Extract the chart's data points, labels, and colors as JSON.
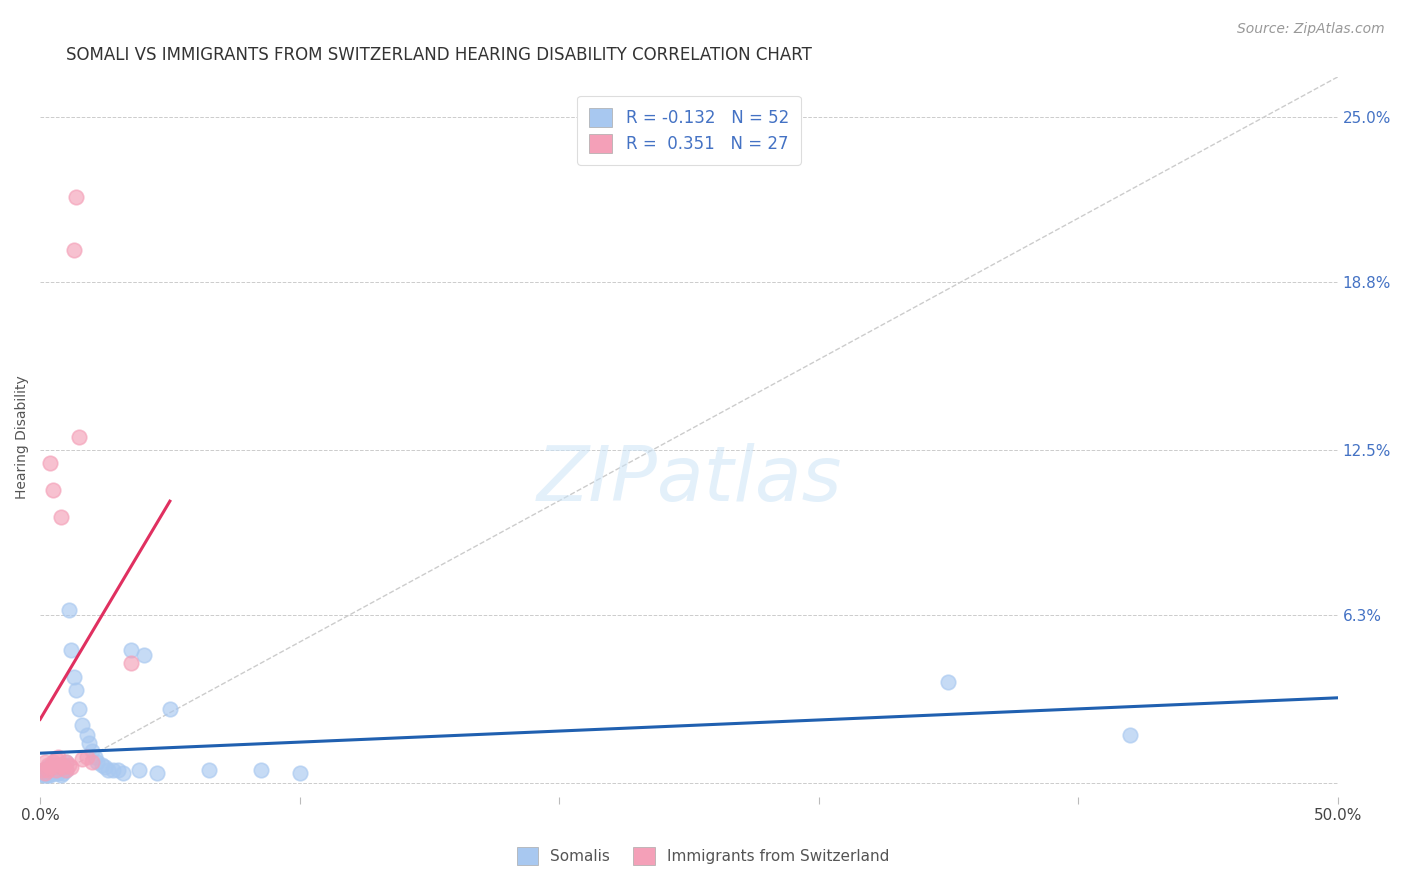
{
  "title": "SOMALI VS IMMIGRANTS FROM SWITZERLAND HEARING DISABILITY CORRELATION CHART",
  "source": "Source: ZipAtlas.com",
  "ylabel": "Hearing Disability",
  "xlim": [
    0.0,
    0.5
  ],
  "ylim": [
    -0.005,
    0.265
  ],
  "xticks": [
    0.0,
    0.1,
    0.2,
    0.3,
    0.4,
    0.5
  ],
  "xticklabels": [
    "0.0%",
    "",
    "",
    "",
    "",
    "50.0%"
  ],
  "ytick_vals": [
    0.0,
    0.063,
    0.125,
    0.188,
    0.25
  ],
  "ytick_labels": [
    "",
    "6.3%",
    "12.5%",
    "18.8%",
    "25.0%"
  ],
  "legend_labels": [
    "Somalis",
    "Immigrants from Switzerland"
  ],
  "somali_color": "#a8c8f0",
  "swiss_color": "#f4a0b8",
  "somali_line_color": "#2060b0",
  "swiss_line_color": "#e03060",
  "diagonal_color": "#cccccc",
  "R_somali": -0.132,
  "N_somali": 52,
  "R_swiss": 0.351,
  "N_swiss": 27,
  "somali_x": [
    0.001,
    0.001,
    0.002,
    0.002,
    0.002,
    0.003,
    0.003,
    0.003,
    0.004,
    0.004,
    0.004,
    0.005,
    0.005,
    0.005,
    0.006,
    0.006,
    0.006,
    0.007,
    0.007,
    0.008,
    0.008,
    0.009,
    0.009,
    0.01,
    0.01,
    0.011,
    0.012,
    0.013,
    0.014,
    0.015,
    0.016,
    0.018,
    0.019,
    0.02,
    0.021,
    0.022,
    0.024,
    0.025,
    0.026,
    0.028,
    0.03,
    0.032,
    0.035,
    0.038,
    0.04,
    0.045,
    0.05,
    0.065,
    0.085,
    0.1,
    0.35,
    0.42
  ],
  "somali_y": [
    0.005,
    0.003,
    0.005,
    0.004,
    0.003,
    0.006,
    0.004,
    0.003,
    0.005,
    0.004,
    0.003,
    0.007,
    0.005,
    0.004,
    0.007,
    0.005,
    0.004,
    0.006,
    0.004,
    0.005,
    0.003,
    0.007,
    0.004,
    0.008,
    0.005,
    0.065,
    0.05,
    0.04,
    0.035,
    0.028,
    0.022,
    0.018,
    0.015,
    0.012,
    0.01,
    0.008,
    0.007,
    0.006,
    0.005,
    0.005,
    0.005,
    0.004,
    0.05,
    0.005,
    0.048,
    0.004,
    0.028,
    0.005,
    0.005,
    0.004,
    0.038,
    0.018
  ],
  "swiss_x": [
    0.001,
    0.002,
    0.002,
    0.003,
    0.003,
    0.004,
    0.004,
    0.005,
    0.005,
    0.006,
    0.006,
    0.007,
    0.007,
    0.008,
    0.008,
    0.009,
    0.01,
    0.01,
    0.011,
    0.012,
    0.013,
    0.014,
    0.015,
    0.016,
    0.018,
    0.02,
    0.035
  ],
  "swiss_y": [
    0.005,
    0.008,
    0.004,
    0.007,
    0.005,
    0.12,
    0.006,
    0.11,
    0.008,
    0.009,
    0.005,
    0.01,
    0.006,
    0.1,
    0.007,
    0.006,
    0.008,
    0.005,
    0.007,
    0.006,
    0.2,
    0.22,
    0.13,
    0.009,
    0.01,
    0.008,
    0.045
  ],
  "background_color": "#ffffff",
  "title_fontsize": 12,
  "label_fontsize": 10,
  "tick_fontsize": 11,
  "source_fontsize": 10
}
